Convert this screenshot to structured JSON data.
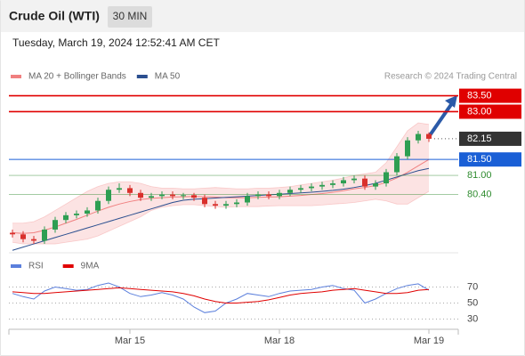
{
  "header": {
    "title": "Crude Oil (WTI)",
    "timeframe": "30 MIN",
    "datetime": "Tuesday, March 19, 2024 12:52:41 AM CET"
  },
  "chart_data": [
    {
      "type": "candlestick",
      "source": "Research © 2024 Trading Central",
      "up_color": "#2e9e52",
      "down_color": "#d9302c",
      "categories": [
        null,
        null,
        null,
        null,
        null,
        null,
        null,
        null,
        null,
        null,
        null,
        "Mar 15",
        null,
        null,
        null,
        null,
        null,
        null,
        null,
        null,
        null,
        null,
        null,
        null,
        null,
        "Mar 18",
        null,
        null,
        null,
        null,
        null,
        null,
        null,
        null,
        null,
        null,
        null,
        null,
        null,
        "Mar 19"
      ],
      "open": [
        79.2,
        79.15,
        79.0,
        78.95,
        79.3,
        79.6,
        79.75,
        79.8,
        79.9,
        80.2,
        80.55,
        80.6,
        80.45,
        80.3,
        80.35,
        80.4,
        80.35,
        80.38,
        80.3,
        80.1,
        80.05,
        80.1,
        80.15,
        80.35,
        80.4,
        80.35,
        80.45,
        80.55,
        80.6,
        80.65,
        80.7,
        80.75,
        80.85,
        80.9,
        80.65,
        80.75,
        81.1,
        81.6,
        82.1,
        82.3
      ],
      "high": [
        79.3,
        79.25,
        79.1,
        79.4,
        79.7,
        79.85,
        79.9,
        80.0,
        80.3,
        80.65,
        80.75,
        80.7,
        80.55,
        80.45,
        80.5,
        80.5,
        80.45,
        80.45,
        80.4,
        80.2,
        80.2,
        80.25,
        80.45,
        80.5,
        80.5,
        80.55,
        80.65,
        80.7,
        80.75,
        80.8,
        80.85,
        80.95,
        81.0,
        81.0,
        80.85,
        81.2,
        81.7,
        82.2,
        82.4,
        82.35
      ],
      "low": [
        79.05,
        78.9,
        78.85,
        78.85,
        79.2,
        79.5,
        79.65,
        79.7,
        79.8,
        80.1,
        80.45,
        80.35,
        80.2,
        80.2,
        80.25,
        80.25,
        80.25,
        80.2,
        80.0,
        79.95,
        79.95,
        80.0,
        80.05,
        80.25,
        80.25,
        80.25,
        80.35,
        80.45,
        80.5,
        80.55,
        80.6,
        80.65,
        80.75,
        80.55,
        80.55,
        80.65,
        81.0,
        81.5,
        82.0,
        82.05
      ],
      "close": [
        79.15,
        79.0,
        78.95,
        79.3,
        79.6,
        79.75,
        79.8,
        79.9,
        80.2,
        80.55,
        80.6,
        80.45,
        80.3,
        80.35,
        80.4,
        80.35,
        80.38,
        80.3,
        80.1,
        80.05,
        80.1,
        80.15,
        80.35,
        80.4,
        80.35,
        80.45,
        80.55,
        80.6,
        80.65,
        80.7,
        80.75,
        80.85,
        80.9,
        80.65,
        80.75,
        81.1,
        81.6,
        82.1,
        82.3,
        82.15
      ],
      "series": [
        {
          "name": "MA 20 + Bollinger Bands",
          "color": "#f08080",
          "values": [
            79.2,
            79.18,
            79.2,
            79.28,
            79.38,
            79.5,
            79.62,
            79.75,
            79.88,
            80.0,
            80.1,
            80.18,
            80.24,
            80.28,
            80.3,
            80.32,
            80.33,
            80.34,
            80.33,
            80.32,
            80.3,
            80.3,
            80.3,
            80.31,
            80.32,
            80.33,
            80.35,
            80.37,
            80.4,
            80.43,
            80.47,
            80.52,
            80.58,
            80.62,
            80.68,
            80.78,
            80.92,
            81.1,
            81.3,
            81.5
          ],
          "upper": [
            79.5,
            79.5,
            79.55,
            79.7,
            79.9,
            80.1,
            80.3,
            80.5,
            80.65,
            80.75,
            80.8,
            80.8,
            80.75,
            80.65,
            80.6,
            80.6,
            80.58,
            80.58,
            80.6,
            80.62,
            80.6,
            80.58,
            80.58,
            80.6,
            80.6,
            80.62,
            80.65,
            80.7,
            80.75,
            80.8,
            80.85,
            80.92,
            81.0,
            81.05,
            81.1,
            81.4,
            81.9,
            82.4,
            82.65,
            82.6
          ],
          "lower": [
            78.9,
            78.85,
            78.85,
            78.85,
            78.85,
            78.9,
            78.95,
            79.0,
            79.1,
            79.25,
            79.4,
            79.55,
            79.7,
            79.9,
            80.0,
            80.05,
            80.08,
            80.08,
            80.05,
            80.02,
            80.0,
            80.02,
            80.02,
            80.02,
            80.04,
            80.05,
            80.05,
            80.05,
            80.05,
            80.07,
            80.1,
            80.12,
            80.15,
            80.2,
            80.25,
            80.2,
            80.1,
            80.1,
            80.3,
            80.5
          ]
        },
        {
          "name": "MA 50",
          "color": "#2b4f8f",
          "values": [
            78.65,
            78.75,
            78.85,
            78.95,
            79.05,
            79.15,
            79.25,
            79.35,
            79.45,
            79.55,
            79.65,
            79.75,
            79.85,
            79.95,
            80.05,
            80.15,
            80.22,
            80.25,
            80.27,
            80.29,
            80.31,
            80.33,
            80.35,
            80.37,
            80.39,
            80.41,
            80.43,
            80.45,
            80.47,
            80.5,
            80.53,
            80.57,
            80.62,
            80.68,
            80.75,
            80.85,
            80.95,
            81.05,
            81.15,
            81.22
          ]
        }
      ],
      "ylim": [
        78.6,
        84.55
      ],
      "levels": [
        {
          "value": 83.5,
          "label": "83.50",
          "color": "#e00000",
          "style": "box"
        },
        {
          "value": 83.0,
          "label": "83.00",
          "color": "#e00000",
          "style": "box"
        },
        {
          "value": 82.15,
          "label": "82.15",
          "color": "#333333",
          "style": "dotted"
        },
        {
          "value": 81.5,
          "label": "81.50",
          "color": "#1a5fd6",
          "style": "box"
        },
        {
          "value": 81.0,
          "label": "81.00",
          "color": "#2e8b2e",
          "style": "text"
        },
        {
          "value": 80.4,
          "label": "80.40",
          "color": "#2e8b2e",
          "style": "text"
        }
      ]
    },
    {
      "type": "line",
      "series": [
        {
          "name": "RSI",
          "color": "#5b7fdc",
          "values": [
            62,
            58,
            55,
            65,
            70,
            68,
            66,
            67,
            72,
            75,
            70,
            62,
            58,
            60,
            63,
            60,
            55,
            45,
            38,
            40,
            50,
            55,
            62,
            60,
            58,
            62,
            65,
            66,
            67,
            70,
            72,
            68,
            66,
            50,
            55,
            62,
            68,
            72,
            74,
            66
          ]
        },
        {
          "name": "9MA",
          "color": "#e00000",
          "values": [
            64,
            63,
            62,
            62,
            63,
            64,
            65,
            66,
            67,
            68,
            69,
            68,
            67,
            66,
            65,
            64,
            62,
            59,
            55,
            52,
            50,
            50,
            51,
            52,
            54,
            57,
            60,
            62,
            63,
            64,
            66,
            67,
            68,
            66,
            64,
            62,
            62,
            63,
            66,
            67
          ]
        }
      ],
      "ylim": [
        15,
        105
      ],
      "yticks": [
        30,
        50,
        70
      ]
    }
  ]
}
